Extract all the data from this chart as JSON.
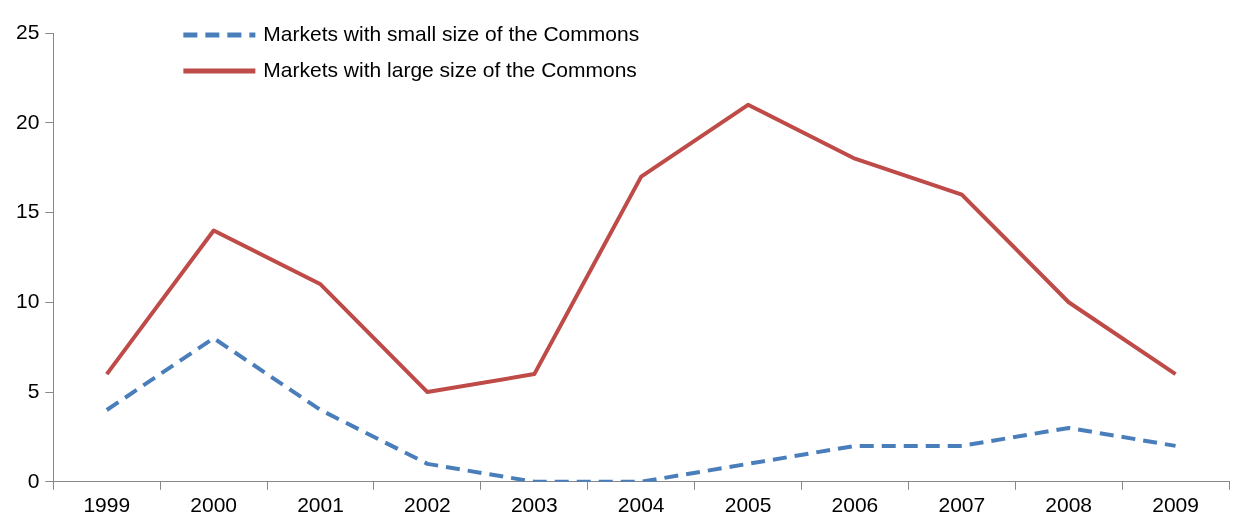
{
  "chart_data": {
    "type": "line",
    "categories": [
      "1999",
      "2000",
      "2001",
      "2002",
      "2003",
      "2004",
      "2005",
      "2006",
      "2007",
      "2008",
      "2009"
    ],
    "series": [
      {
        "name": "Markets with small size of the Commons",
        "color": "#4a7ebb",
        "line_style": "dashed",
        "values": [
          4,
          8,
          4,
          1,
          0,
          0,
          1,
          2,
          2,
          3,
          2
        ]
      },
      {
        "name": "Markets with large size of the Commons",
        "color": "#be4b48",
        "line_style": "solid",
        "values": [
          6,
          14,
          11,
          5,
          6,
          17,
          21,
          18,
          16,
          10,
          6
        ]
      }
    ],
    "ylim": [
      0,
      25
    ],
    "yticks": [
      0,
      5,
      10,
      15,
      20,
      25
    ],
    "grid": false,
    "legend": "top left",
    "marker": "none"
  }
}
